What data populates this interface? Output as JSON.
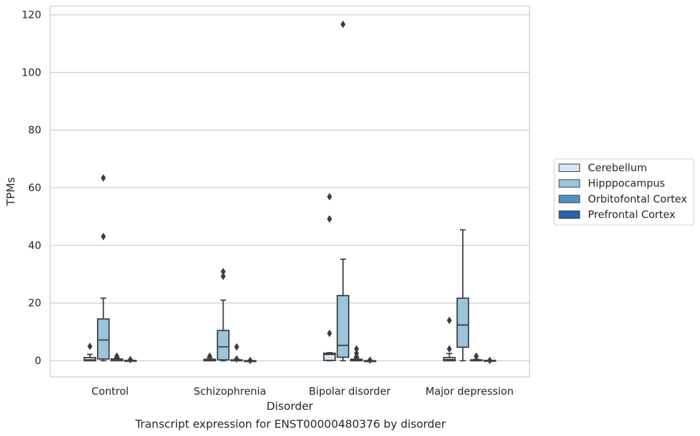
{
  "chart_data": {
    "type": "box",
    "title": "Transcript expression for ENST00000480376 by disorder",
    "xlabel": "Disorder",
    "ylabel": "TPMs",
    "ylim": [
      -5.6,
      123
    ],
    "yticks": [
      0,
      20,
      40,
      60,
      80,
      100,
      120
    ],
    "grid": true,
    "legend_position": "right",
    "categories": [
      "Control",
      "Schizophrenia",
      "Bipolar disorder",
      "Major depression"
    ],
    "series": [
      {
        "name": "Cerebellum",
        "color": "#d6e6f4",
        "boxes": [
          {
            "q1": 0.0,
            "median": 0.3,
            "q3": 1.1,
            "whisker_low": 0.0,
            "whisker_high": 2.2,
            "outliers": [
              5.0
            ]
          },
          {
            "q1": 0.0,
            "median": 0.2,
            "q3": 0.5,
            "whisker_low": 0.0,
            "whisker_high": 1.0,
            "outliers": [
              1.6
            ]
          },
          {
            "q1": 0.1,
            "median": 2.2,
            "q3": 2.6,
            "whisker_low": 0.0,
            "whisker_high": 2.8,
            "outliers": [
              9.5,
              49.2,
              56.9
            ]
          },
          {
            "q1": 0.0,
            "median": 0.4,
            "q3": 1.1,
            "whisker_low": 0.0,
            "whisker_high": 2.5,
            "outliers": [
              4.1,
              14.0
            ]
          }
        ]
      },
      {
        "name": "Hipppocampus",
        "color": "#9ac5dd",
        "boxes": [
          {
            "q1": 0.6,
            "median": 7.2,
            "q3": 14.5,
            "whisker_low": 0.0,
            "whisker_high": 21.7,
            "outliers": [
              43.1,
              63.4
            ]
          },
          {
            "q1": 0.3,
            "median": 4.8,
            "q3": 10.5,
            "whisker_low": 0.0,
            "whisker_high": 21.0,
            "outliers": [
              29.3,
              30.9
            ]
          },
          {
            "q1": 1.2,
            "median": 5.3,
            "q3": 22.6,
            "whisker_low": 0.0,
            "whisker_high": 35.2,
            "outliers": [
              116.7
            ]
          },
          {
            "q1": 4.7,
            "median": 12.4,
            "q3": 21.7,
            "whisker_low": 0.0,
            "whisker_high": 45.4,
            "outliers": []
          }
        ]
      },
      {
        "name": "Orbitofontal Cortex",
        "color": "#4f92c2",
        "boxes": [
          {
            "q1": 0.0,
            "median": 0.1,
            "q3": 0.6,
            "whisker_low": 0.0,
            "whisker_high": 0.9,
            "outliers": [
              1.2,
              1.6
            ]
          },
          {
            "q1": 0.0,
            "median": 0.1,
            "q3": 0.3,
            "whisker_low": 0.0,
            "whisker_high": 0.5,
            "outliers": [
              0.6,
              4.8
            ]
          },
          {
            "q1": 0.0,
            "median": 0.2,
            "q3": 0.5,
            "whisker_low": 0.0,
            "whisker_high": 1.0,
            "outliers": [
              1.4,
              2.6,
              4.1
            ]
          },
          {
            "q1": 0.0,
            "median": 0.1,
            "q3": 0.3,
            "whisker_low": 0.0,
            "whisker_high": 0.5,
            "outliers": [
              1.6
            ]
          }
        ]
      },
      {
        "name": "Prefrontal Cortex",
        "color": "#2565a8",
        "boxes": [
          {
            "q1": 0.0,
            "median": 0.0,
            "q3": 0.1,
            "whisker_low": 0.0,
            "whisker_high": 0.1,
            "outliers": [
              0.4
            ]
          },
          {
            "q1": 0.0,
            "median": 0.0,
            "q3": 0.0,
            "whisker_low": 0.0,
            "whisker_high": 0.1,
            "outliers": [
              0.1
            ]
          },
          {
            "q1": 0.0,
            "median": 0.0,
            "q3": 0.0,
            "whisker_low": 0.0,
            "whisker_high": 0.1,
            "outliers": [
              0.2
            ]
          },
          {
            "q1": 0.0,
            "median": 0.0,
            "q3": 0.1,
            "whisker_low": 0.0,
            "whisker_high": 0.1,
            "outliers": [
              0.1
            ]
          }
        ]
      }
    ]
  }
}
